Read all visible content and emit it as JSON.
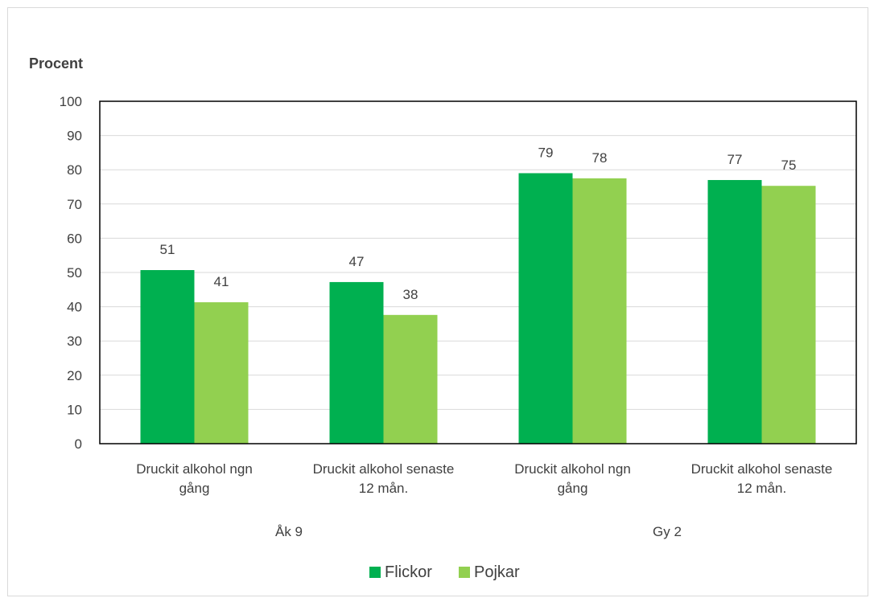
{
  "chart_data": {
    "type": "bar",
    "ylabel": "Procent",
    "ylim": [
      0,
      100
    ],
    "yticks": [
      0,
      10,
      20,
      30,
      40,
      50,
      60,
      70,
      80,
      90,
      100
    ],
    "grid": true,
    "legend_position": "bottom",
    "groups": [
      {
        "label": "Åk 9",
        "categories": [
          [
            "Druckit alkohol ngn",
            "gång"
          ],
          [
            "Druckit alkohol senaste",
            "12 mån."
          ]
        ]
      },
      {
        "label": "Gy 2",
        "categories": [
          [
            "Druckit alkohol ngn",
            "gång"
          ],
          [
            "Druckit alkohol senaste",
            "12 mån."
          ]
        ]
      }
    ],
    "series": [
      {
        "name": "Flickor",
        "color": "#00b050",
        "values": [
          50.7,
          47.2,
          79.0,
          77.0
        ],
        "labels": [
          "51",
          "47",
          "79",
          "77"
        ]
      },
      {
        "name": "Pojkar",
        "color": "#92d050",
        "values": [
          41.3,
          37.6,
          77.5,
          75.3
        ],
        "labels": [
          "41",
          "38",
          "78",
          "75"
        ]
      }
    ]
  }
}
